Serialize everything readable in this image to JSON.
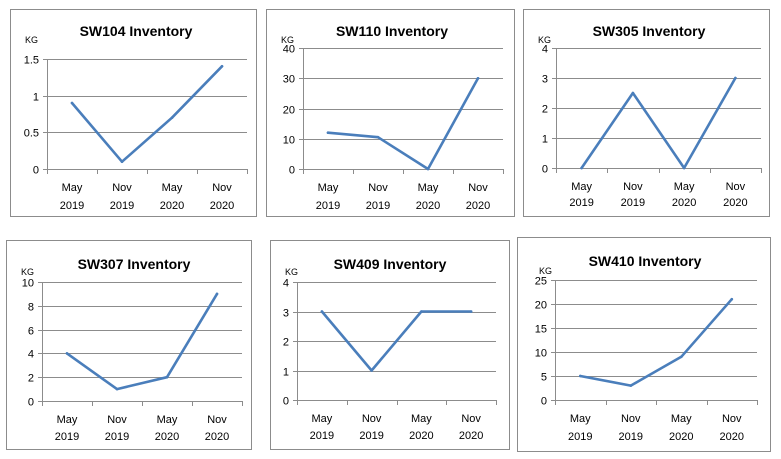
{
  "colors": {
    "series": "#4a7ebb",
    "grid": "#8c8c8c",
    "border": "#8c8c8c"
  },
  "chart_data": [
    {
      "type": "line",
      "title": "SW104 Inventory",
      "unit": "KG",
      "categories": [
        [
          "May",
          "2019"
        ],
        [
          "Nov",
          "2019"
        ],
        [
          "May",
          "2020"
        ],
        [
          "Nov",
          "2020"
        ]
      ],
      "values": [
        0.9,
        0.1,
        0.7,
        1.4
      ],
      "ylim": [
        0,
        1.5
      ],
      "yticks": [
        0,
        0.5,
        1,
        1.5
      ],
      "grid": true
    },
    {
      "type": "line",
      "title": "SW110 Inventory",
      "unit": "KG",
      "categories": [
        [
          "May",
          "2019"
        ],
        [
          "Nov",
          "2019"
        ],
        [
          "May",
          "2020"
        ],
        [
          "Nov",
          "2020"
        ]
      ],
      "values": [
        12,
        10.5,
        0,
        30
      ],
      "ylim": [
        0,
        40
      ],
      "yticks": [
        0,
        10,
        20,
        30,
        40
      ],
      "grid": true
    },
    {
      "type": "line",
      "title": "SW305 Inventory",
      "unit": "KG",
      "categories": [
        [
          "May",
          "2019"
        ],
        [
          "Nov",
          "2019"
        ],
        [
          "May",
          "2020"
        ],
        [
          "Nov",
          "2020"
        ]
      ],
      "values": [
        0,
        2.5,
        0,
        3
      ],
      "ylim": [
        0,
        4
      ],
      "yticks": [
        0,
        1,
        2,
        3,
        4
      ],
      "grid": true
    },
    {
      "type": "line",
      "title": "SW307 Inventory",
      "unit": "KG",
      "categories": [
        [
          "May",
          "2019"
        ],
        [
          "Nov",
          "2019"
        ],
        [
          "May",
          "2020"
        ],
        [
          "Nov",
          "2020"
        ]
      ],
      "values": [
        4,
        1,
        2,
        9
      ],
      "ylim": [
        0,
        10
      ],
      "yticks": [
        0,
        2,
        4,
        6,
        8,
        10
      ],
      "grid": true
    },
    {
      "type": "line",
      "title": "SW409 Inventory",
      "unit": "KG",
      "categories": [
        [
          "May",
          "2019"
        ],
        [
          "Nov",
          "2019"
        ],
        [
          "May",
          "2020"
        ],
        [
          "Nov",
          "2020"
        ]
      ],
      "values": [
        3,
        1,
        3,
        3
      ],
      "ylim": [
        0,
        4
      ],
      "yticks": [
        0,
        1,
        2,
        3,
        4
      ],
      "grid": true
    },
    {
      "type": "line",
      "title": "SW410 Inventory",
      "unit": "KG",
      "categories": [
        [
          "May",
          "2019"
        ],
        [
          "Nov",
          "2019"
        ],
        [
          "May",
          "2020"
        ],
        [
          "Nov",
          "2020"
        ]
      ],
      "values": [
        5,
        3,
        9,
        21
      ],
      "ylim": [
        0,
        25
      ],
      "yticks": [
        0,
        5,
        10,
        15,
        20,
        25
      ],
      "grid": true
    }
  ]
}
